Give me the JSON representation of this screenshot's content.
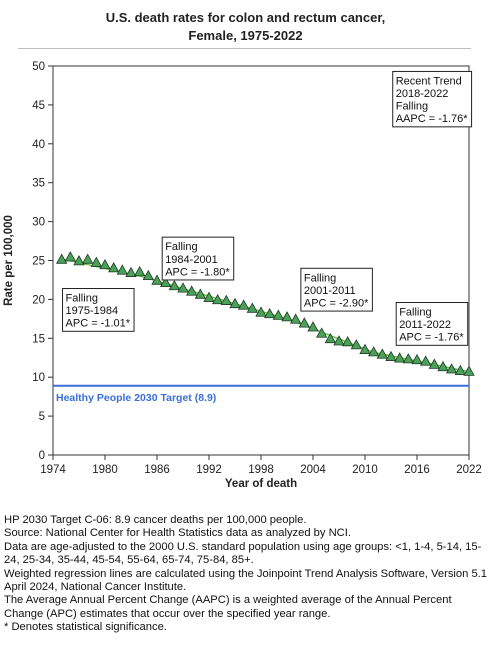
{
  "title_line1": "U.S. death rates for colon and rectum cancer,",
  "title_line2": "Female,  1975-2022",
  "colors": {
    "target_line": "#3a6fd8",
    "point_fill": "#49a257",
    "point_stroke": "#1f3a24",
    "trend_line": "#6bbf4d"
  },
  "chart_data": {
    "type": "scatter",
    "xlabel": "Year of death",
    "ylabel": "Rate per 100,000",
    "xlim": [
      1974,
      2022
    ],
    "ylim": [
      0,
      50
    ],
    "xticks": [
      1974,
      1980,
      1986,
      1992,
      1998,
      2004,
      2010,
      2016,
      2022
    ],
    "yticks": [
      0,
      5,
      10,
      15,
      20,
      25,
      30,
      35,
      40,
      45,
      50
    ],
    "grid": false,
    "series": [
      {
        "x": [
          1975,
          1976,
          1977,
          1978,
          1979,
          1980,
          1981,
          1982,
          1983,
          1984,
          1985,
          1986,
          1987,
          1988,
          1989,
          1990,
          1991,
          1992,
          1993,
          1994,
          1995,
          1996,
          1997,
          1998,
          1999,
          2000,
          2001,
          2002,
          2003,
          2004,
          2005,
          2006,
          2007,
          2008,
          2009,
          2010,
          2011,
          2012,
          2013,
          2014,
          2015,
          2016,
          2017,
          2018,
          2019,
          2020,
          2021,
          2022
        ],
        "y": [
          25.1,
          25.4,
          24.9,
          25.1,
          24.7,
          24.4,
          24.0,
          23.7,
          23.4,
          23.5,
          23.0,
          22.4,
          22.1,
          21.7,
          21.4,
          21.0,
          20.6,
          20.2,
          19.9,
          19.8,
          19.4,
          19.2,
          18.8,
          18.3,
          18.1,
          17.9,
          17.7,
          17.4,
          16.9,
          16.4,
          15.6,
          14.9,
          14.6,
          14.5,
          14.1,
          13.5,
          13.2,
          12.9,
          12.6,
          12.4,
          12.3,
          12.2,
          12.0,
          11.6,
          11.3,
          11.0,
          10.8,
          10.7
        ]
      }
    ],
    "trend_segments": [
      {
        "x": [
          1975,
          1984
        ],
        "y": [
          25.2,
          23.0
        ]
      },
      {
        "x": [
          1984,
          2001
        ],
        "y": [
          23.0,
          17.5
        ]
      },
      {
        "x": [
          2001,
          2011
        ],
        "y": [
          17.5,
          13.2
        ]
      },
      {
        "x": [
          2011,
          2022
        ],
        "y": [
          13.2,
          10.7
        ]
      }
    ],
    "target": {
      "value": 8.9,
      "label": "Healthy People 2030 Target (8.9)"
    },
    "annotations": [
      {
        "lines": [
          "Falling",
          "1975-1984",
          "APC = -1.01*"
        ],
        "anchor_x": 1975.1,
        "anchor_y": 21.4
      },
      {
        "lines": [
          "Falling",
          "1984-2001",
          "APC = -1.80*"
        ],
        "anchor_x": 1986.6,
        "anchor_y": 28.0
      },
      {
        "lines": [
          "Falling",
          "2001-2011",
          "APC = -2.90*"
        ],
        "anchor_x": 2002.6,
        "anchor_y": 24.0
      },
      {
        "lines": [
          "Falling",
          "2011-2022",
          "APC = -1.76*"
        ],
        "anchor_x": 2013.6,
        "anchor_y": 19.6
      },
      {
        "lines": [
          "Recent Trend",
          "2018-2022",
          "Falling",
          "AAPC = -1.76*"
        ],
        "anchor_x": 2013.2,
        "anchor_y": 49.3
      }
    ]
  },
  "footnotes": [
    "HP 2030 Target C-06: 8.9 cancer deaths per 100,000 people.",
    "Source: National Center for Health Statistics data as analyzed by NCI.",
    "Data are age-adjusted to the 2000 U.S. standard population using age groups: <1, 1-4, 5-14, 15-24, 25-34, 35-44, 45-54, 55-64, 65-74, 75-84, 85+.",
    "Weighted regression lines are calculated using the Joinpoint Trend Analysis Software, Version 5.1 April 2024, National Cancer Institute.",
    "The Average Annual Percent Change (AAPC) is a weighted average of the Annual Percent Change (APC) estimates that occur over the specified year range.",
    "* Denotes statistical significance."
  ]
}
